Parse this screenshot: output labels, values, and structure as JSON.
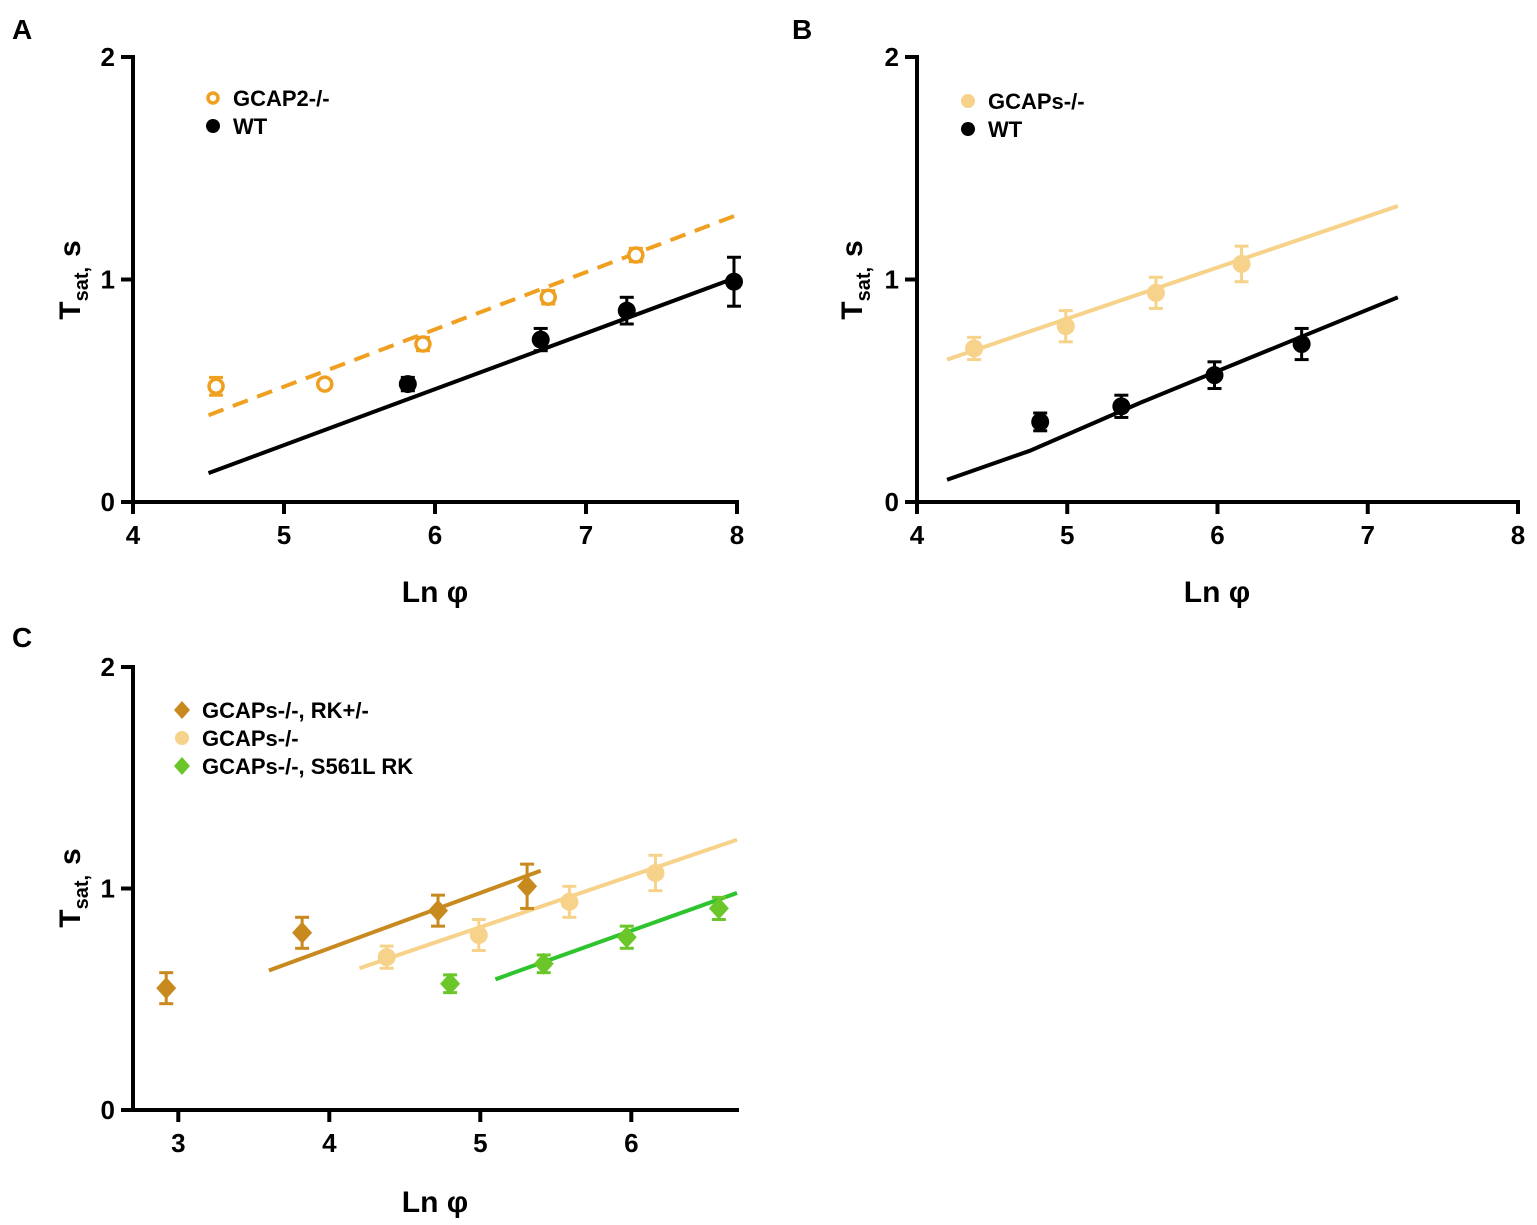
{
  "chart_data": [
    {
      "type": "scatter",
      "panel_label": "A",
      "xlabel": "Ln φ",
      "ylabel_main": "T",
      "ylabel_sub": "sat,",
      "ylabel_unit": "s",
      "xlim": [
        4,
        8
      ],
      "ylim": [
        0,
        2
      ],
      "xticks": [
        "4",
        "5",
        "6",
        "7",
        "8"
      ],
      "yticks": [
        "0",
        "1",
        "2"
      ],
      "legend_position": "top-left",
      "series": [
        {
          "name": "GCAP2-/-",
          "color": "#f0a020",
          "marker": "open-circle",
          "points": [
            {
              "x": 4.55,
              "y": 0.52,
              "err": 0.04
            },
            {
              "x": 5.27,
              "y": 0.53,
              "err": 0.0
            },
            {
              "x": 5.92,
              "y": 0.71,
              "err": 0.03
            },
            {
              "x": 6.75,
              "y": 0.92,
              "err": 0.03
            },
            {
              "x": 7.33,
              "y": 1.11,
              "err": 0.03
            }
          ],
          "fit": {
            "style": "dashed",
            "points": [
              [
                4.5,
                0.39
              ],
              [
                8.0,
                1.29
              ]
            ]
          }
        },
        {
          "name": "WT",
          "color": "#000000",
          "marker": "circle",
          "points": [
            {
              "x": 5.82,
              "y": 0.53,
              "err": 0.03
            },
            {
              "x": 6.7,
              "y": 0.73,
              "err": 0.05
            },
            {
              "x": 7.27,
              "y": 0.86,
              "err": 0.06
            },
            {
              "x": 7.98,
              "y": 0.99,
              "err": 0.11
            }
          ],
          "fit": {
            "style": "solid",
            "points": [
              [
                4.5,
                0.13
              ],
              [
                8.0,
                1.01
              ]
            ]
          }
        }
      ]
    },
    {
      "type": "scatter",
      "panel_label": "B",
      "xlabel": "Ln φ",
      "ylabel_main": "T",
      "ylabel_sub": "sat,",
      "ylabel_unit": "s",
      "xlim": [
        4,
        8
      ],
      "ylim": [
        0,
        2
      ],
      "xticks": [
        "4",
        "5",
        "6",
        "7",
        "8"
      ],
      "yticks": [
        "0",
        "1",
        "2"
      ],
      "legend_position": "top-left",
      "series": [
        {
          "name": "GCAPs-/-",
          "color": "#f7d28a",
          "marker": "circle",
          "points": [
            {
              "x": 4.38,
              "y": 0.69,
              "err": 0.05
            },
            {
              "x": 4.99,
              "y": 0.79,
              "err": 0.07
            },
            {
              "x": 5.59,
              "y": 0.94,
              "err": 0.07
            },
            {
              "x": 6.16,
              "y": 1.07,
              "err": 0.08
            }
          ],
          "fit": {
            "style": "solid",
            "points": [
              [
                4.2,
                0.64
              ],
              [
                7.2,
                1.33
              ]
            ]
          }
        },
        {
          "name": "WT",
          "color": "#000000",
          "marker": "circle",
          "points": [
            {
              "x": 4.82,
              "y": 0.36,
              "err": 0.04
            },
            {
              "x": 5.36,
              "y": 0.43,
              "err": 0.05
            },
            {
              "x": 5.98,
              "y": 0.57,
              "err": 0.06
            },
            {
              "x": 6.56,
              "y": 0.71,
              "err": 0.07
            }
          ],
          "fit": {
            "style": "solid",
            "points": [
              [
                4.2,
                0.1
              ],
              [
                4.75,
                0.23
              ],
              [
                5.5,
                0.45
              ],
              [
                7.2,
                0.92
              ]
            ]
          }
        }
      ]
    },
    {
      "type": "scatter",
      "panel_label": "C",
      "xlabel": "Ln φ",
      "ylabel_main": "T",
      "ylabel_sub": "sat,",
      "ylabel_unit": "s",
      "xlim": [
        2.7,
        6.7
      ],
      "ylim": [
        0,
        2
      ],
      "xticks": [
        "3",
        "4",
        "5",
        "6"
      ],
      "yticks": [
        "0",
        "1",
        "2"
      ],
      "legend_position": "top-left",
      "series": [
        {
          "name": "GCAPs-/-, RK+/-",
          "color": "#c8891e",
          "marker": "diamond",
          "points": [
            {
              "x": 2.92,
              "y": 0.55,
              "err": 0.07
            },
            {
              "x": 3.82,
              "y": 0.8,
              "err": 0.07
            },
            {
              "x": 4.72,
              "y": 0.9,
              "err": 0.07
            },
            {
              "x": 5.31,
              "y": 1.01,
              "err": 0.1
            }
          ],
          "fit": {
            "style": "solid",
            "points": [
              [
                3.6,
                0.63
              ],
              [
                5.4,
                1.08
              ]
            ]
          }
        },
        {
          "name": "GCAPs-/-",
          "color": "#f7d28a",
          "marker": "circle",
          "points": [
            {
              "x": 4.38,
              "y": 0.69,
              "err": 0.05
            },
            {
              "x": 4.99,
              "y": 0.79,
              "err": 0.07
            },
            {
              "x": 5.59,
              "y": 0.94,
              "err": 0.07
            },
            {
              "x": 6.16,
              "y": 1.07,
              "err": 0.08
            }
          ],
          "fit": {
            "style": "solid",
            "points": [
              [
                4.2,
                0.64
              ],
              [
                6.7,
                1.22
              ]
            ]
          }
        },
        {
          "name": "GCAPs-/-, S561L RK",
          "color": "#6bc62a",
          "marker": "diamond",
          "points": [
            {
              "x": 4.8,
              "y": 0.57,
              "err": 0.04
            },
            {
              "x": 5.42,
              "y": 0.66,
              "err": 0.04
            },
            {
              "x": 5.97,
              "y": 0.78,
              "err": 0.05
            },
            {
              "x": 6.58,
              "y": 0.91,
              "err": 0.05
            }
          ],
          "fit": {
            "style": "solid",
            "color": "#2ec42e",
            "points": [
              [
                5.1,
                0.59
              ],
              [
                6.7,
                0.98
              ]
            ]
          }
        }
      ]
    }
  ]
}
